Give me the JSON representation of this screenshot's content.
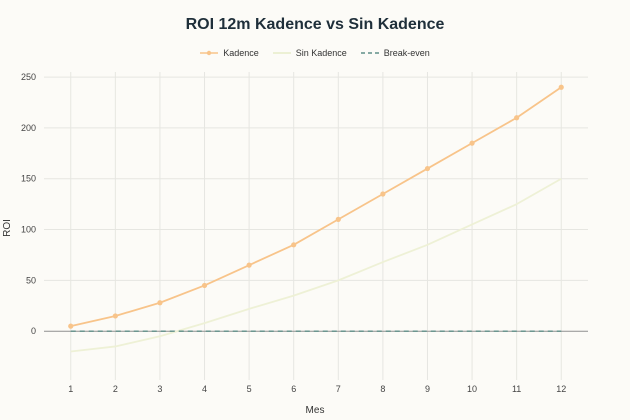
{
  "chart_data": {
    "type": "line",
    "title": "ROI 12m Kadence vs Sin Kadence",
    "xlabel": "Mes",
    "ylabel": "ROI",
    "x": [
      1,
      2,
      3,
      4,
      5,
      6,
      7,
      8,
      9,
      10,
      11,
      12
    ],
    "ylim": [
      -48,
      255
    ],
    "yticks": [
      0,
      50,
      100,
      150,
      200,
      250
    ],
    "grid": true,
    "legend_position": "top-center",
    "series": [
      {
        "name": "Kadence",
        "color": "#f8c48a",
        "markers": true,
        "values": [
          5,
          15,
          28,
          45,
          65,
          85,
          110,
          135,
          160,
          185,
          210,
          240
        ]
      },
      {
        "name": "Sin Kadence",
        "color": "#eef1d6",
        "markers": false,
        "values": [
          -20,
          -15,
          -5,
          8,
          22,
          35,
          50,
          68,
          85,
          105,
          125,
          150
        ]
      },
      {
        "name": "Break-even",
        "color": "#5f8f88",
        "dashed": true,
        "values": [
          0,
          0,
          0,
          0,
          0,
          0,
          0,
          0,
          0,
          0,
          0,
          0
        ]
      }
    ]
  }
}
